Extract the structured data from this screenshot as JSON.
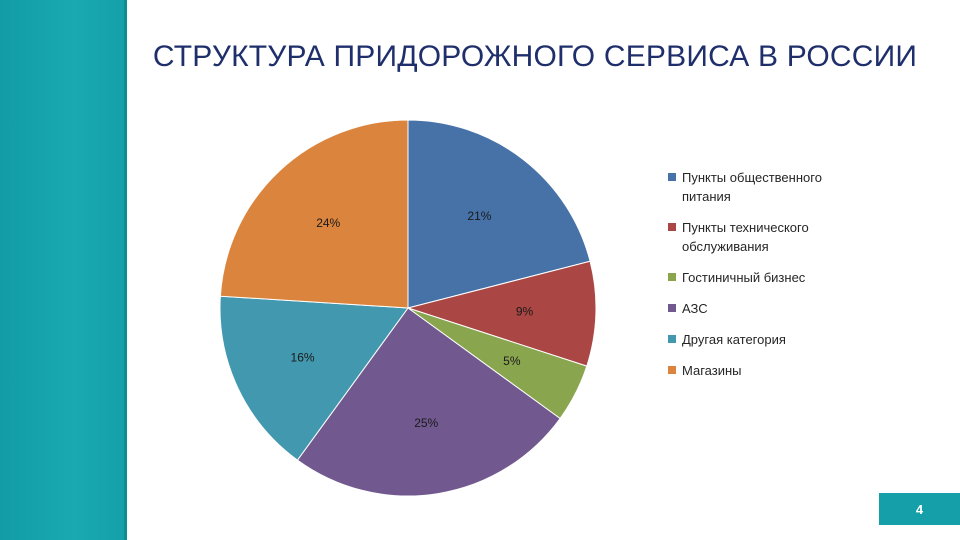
{
  "slide": {
    "title": "СТРУКТУРА ПРИДОРОЖНОГО СЕРВИСА В РОССИИ",
    "number": "4",
    "accent_color": "#1aa9b1",
    "title_color": "#1f2f6b"
  },
  "chart_data": {
    "type": "pie",
    "title": "СТРУКТУРА ПРИДОРОЖНОГО СЕРВИСА В РОССИИ",
    "legend_position": "right",
    "slices": [
      {
        "label": "Пункты общественного питания",
        "value": 21,
        "display": "21%",
        "color": "#4672a8"
      },
      {
        "label": "Пункты технического обслуживания",
        "value": 9,
        "display": "9%",
        "color": "#aa4644"
      },
      {
        "label": "Гостиничный бизнес",
        "value": 5,
        "display": "5%",
        "color": "#89a54e"
      },
      {
        "label": "АЗС",
        "value": 25,
        "display": "25%",
        "color": "#71588f"
      },
      {
        "label": "Другая категория",
        "value": 16,
        "display": "16%",
        "color": "#4298af"
      },
      {
        "label": "Магазины",
        "value": 24,
        "display": "24%",
        "color": "#db843d"
      }
    ]
  }
}
